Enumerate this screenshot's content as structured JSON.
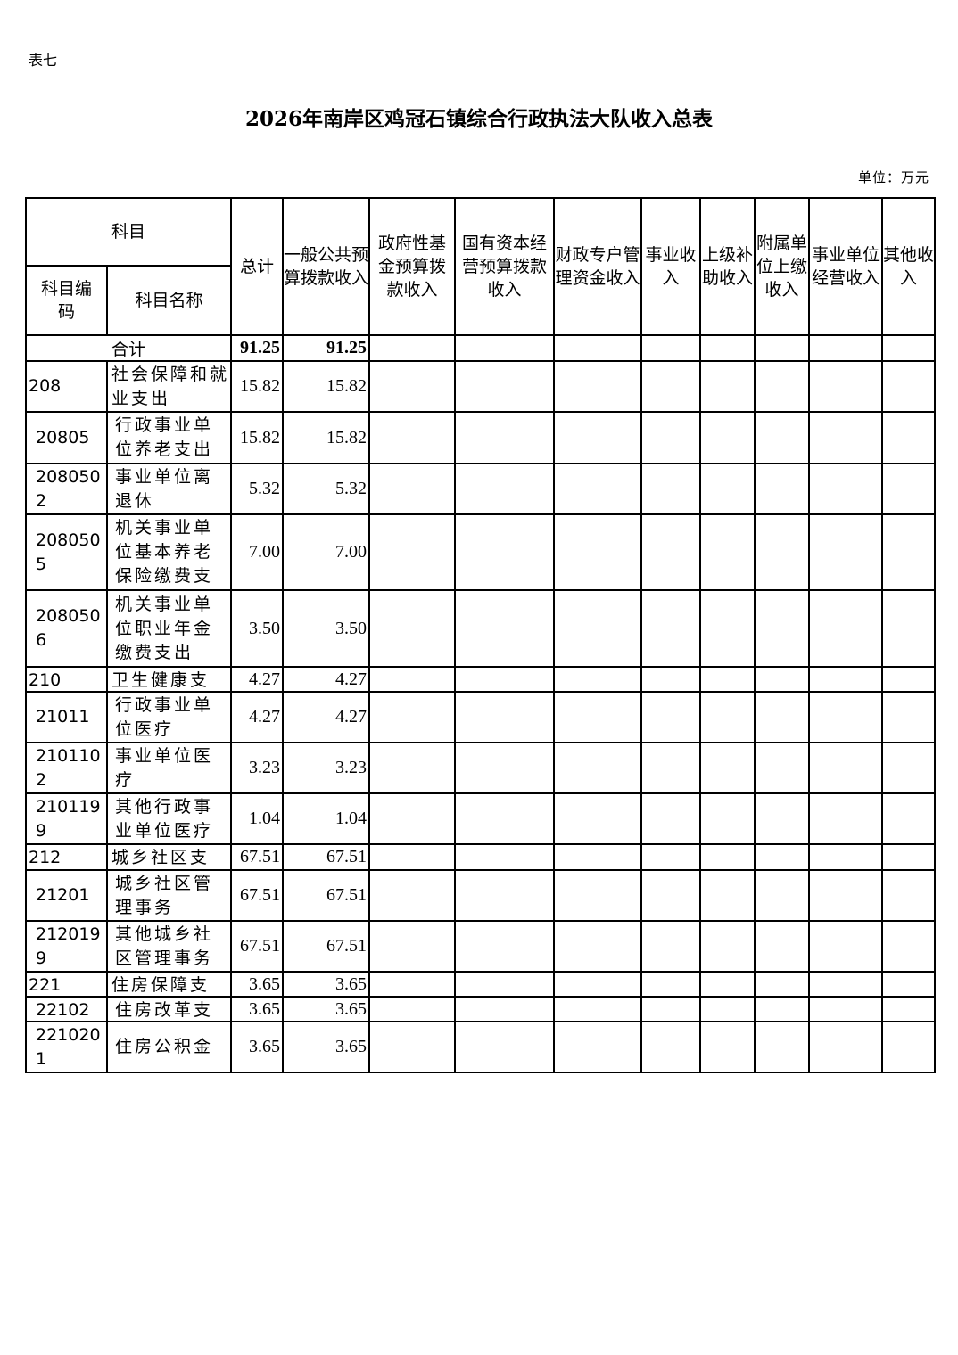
{
  "doc_tag": "表七",
  "title": "2026年南岸区鸡冠石镇综合行政执法大队收入总表",
  "unit": "单位：万元",
  "header": {
    "subject": "科目",
    "code": "科目编码",
    "name": "科目名称",
    "cols": [
      "总计",
      "一般公共预算拨款收入",
      "政府性基金预算拨款收入",
      "国有资本经营预算拨款收入",
      "财政专户管理资金收入",
      "事业收入",
      "上级补助收入",
      "附属单位上缴收入",
      "事业单位经营收入",
      "其他收入"
    ]
  },
  "total": {
    "label": "合计",
    "total": "91.25",
    "general": "91.25"
  },
  "rows": [
    {
      "code": "208",
      "name": "社会保障和就业支出",
      "total": "15.82",
      "general": "15.82"
    },
    {
      "code": "20805",
      "name": "行政事业单位养老支出",
      "total": "15.82",
      "general": "15.82"
    },
    {
      "code": "2080502",
      "name": "事业单位离退休",
      "total": "5.32",
      "general": "5.32"
    },
    {
      "code": "2080505",
      "name": "机关事业单位基本养老保险缴费支出",
      "total": "7.00",
      "general": "7.00"
    },
    {
      "code": "2080506",
      "name": "机关事业单位职业年金缴费支出",
      "total": "3.50",
      "general": "3.50"
    },
    {
      "code": "210",
      "name": "卫生健康支",
      "total": "4.27",
      "general": "4.27"
    },
    {
      "code": "21011",
      "name": "行政事业单位医疗",
      "total": "4.27",
      "general": "4.27"
    },
    {
      "code": "2101102",
      "name": "事业单位医疗",
      "total": "3.23",
      "general": "3.23"
    },
    {
      "code": "2101199",
      "name": "其他行政事业单位医疗",
      "total": "1.04",
      "general": "1.04"
    },
    {
      "code": "212",
      "name": "城乡社区支",
      "total": "67.51",
      "general": "67.51"
    },
    {
      "code": "21201",
      "name": "城乡社区管理事务",
      "total": "67.51",
      "general": "67.51"
    },
    {
      "code": "2120199",
      "name": "其他城乡社区管理事务",
      "total": "67.51",
      "general": "67.51"
    },
    {
      "code": "221",
      "name": "住房保障支",
      "total": "3.65",
      "general": "3.65"
    },
    {
      "code": "22102",
      "name": "住房改革支",
      "total": "3.65",
      "general": "3.65"
    },
    {
      "code": "2210201",
      "name": "住房公积金",
      "total": "3.65",
      "general": "3.65"
    }
  ]
}
